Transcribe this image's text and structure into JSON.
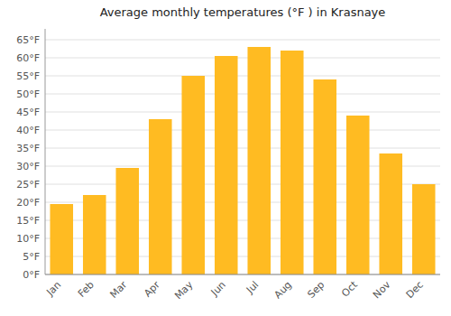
{
  "chart_data": {
    "type": "bar",
    "title": "Average monthly temperatures (°F ) in Krasnaye",
    "categories": [
      "Jan",
      "Feb",
      "Mar",
      "Apr",
      "May",
      "Jun",
      "Jul",
      "Aug",
      "Sep",
      "Oct",
      "Nov",
      "Dec"
    ],
    "values": [
      19.5,
      22,
      29.5,
      43,
      55,
      60.5,
      63,
      62,
      54,
      44,
      33.5,
      25
    ],
    "color": "#FFBB22",
    "ylim": [
      0,
      68
    ],
    "yticks": [
      {
        "value": 0,
        "label": "0°F"
      },
      {
        "value": 5,
        "label": "5°F"
      },
      {
        "value": 10,
        "label": "10°F"
      },
      {
        "value": 15,
        "label": "15°F"
      },
      {
        "value": 20,
        "label": "20°F"
      },
      {
        "value": 25,
        "label": "25°F"
      },
      {
        "value": 30,
        "label": "30°F"
      },
      {
        "value": 35,
        "label": "35°F"
      },
      {
        "value": 40,
        "label": "40°F"
      },
      {
        "value": 45,
        "label": "45°F"
      },
      {
        "value": 50,
        "label": "50°F"
      },
      {
        "value": 55,
        "label": "55°F"
      },
      {
        "value": 60,
        "label": "60°F"
      },
      {
        "value": 65,
        "label": "65°F"
      }
    ],
    "grid": true
  }
}
